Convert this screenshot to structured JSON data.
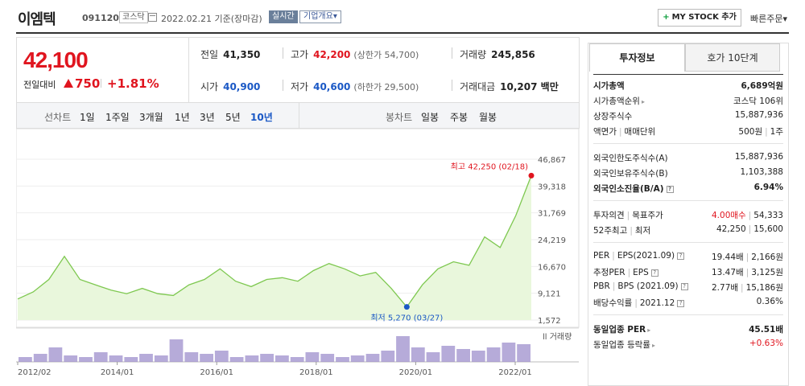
{
  "header": {
    "name": "이엠텍",
    "code": "091120",
    "market": "코스닥",
    "date": "2022.02.21 기준(장마감)",
    "realtime": "실시간",
    "overview": "기업개요",
    "overview_arrow": "▾",
    "mystock_plus": "+",
    "mystock": "MY STOCK 추가",
    "quick_order": "빠른주문",
    "quick_order_arrow": "▾"
  },
  "price": {
    "current": "42,100",
    "change_label": "전일대비",
    "change": "750",
    "change_pct": "+1.81%",
    "direction": "up"
  },
  "quote": {
    "prev_close_label": "전일",
    "prev_close": "41,350",
    "high_label": "고가",
    "high": "42,200",
    "upper_limit": "(상한가 54,700)",
    "volume_label": "거래량",
    "volume": "245,856",
    "open_label": "시가",
    "open": "40,900",
    "low_label": "저가",
    "low": "40,600",
    "lower_limit": "(하한가 29,500)",
    "value_label": "거래대금",
    "value": "10,207 백만"
  },
  "tabs": {
    "line_label": "선차트",
    "line_periods": [
      "1일",
      "1주일",
      "3개월",
      "1년",
      "3년",
      "5년",
      "10년"
    ],
    "active_period": "10년",
    "candle_label": "봉차트",
    "candle_periods": [
      "일봉",
      "주봉",
      "월봉"
    ]
  },
  "chart_data": {
    "type": "area",
    "title": "",
    "y_ticks": [
      "46,867",
      "39,318",
      "31,769",
      "24,219",
      "16,670",
      "9,121",
      "1,572"
    ],
    "ylim": [
      1572,
      46867
    ],
    "x_ticks": [
      "2012/02",
      "2014/01",
      "2016/01",
      "2018/01",
      "2020/01",
      "2022/01"
    ],
    "x": [
      "2012/02",
      "2012/06",
      "2012/10",
      "2013/02",
      "2013/06",
      "2013/10",
      "2014/01",
      "2014/06",
      "2014/10",
      "2015/02",
      "2015/06",
      "2015/10",
      "2016/01",
      "2016/06",
      "2016/10",
      "2017/02",
      "2017/06",
      "2017/10",
      "2018/01",
      "2018/06",
      "2018/10",
      "2019/02",
      "2019/06",
      "2019/10",
      "2020/01",
      "2020/03",
      "2020/06",
      "2020/10",
      "2021/02",
      "2021/06",
      "2021/10",
      "2021/12",
      "2022/01",
      "2022/02"
    ],
    "values": [
      7500,
      9500,
      13000,
      19500,
      13000,
      11500,
      10000,
      9000,
      10500,
      9000,
      8500,
      11500,
      13000,
      16000,
      12500,
      11000,
      13000,
      13500,
      12500,
      15500,
      17500,
      16000,
      14000,
      15000,
      10500,
      5270,
      11500,
      16000,
      18000,
      17000,
      25000,
      22000,
      31000,
      42250
    ],
    "high_label": "최고 42,250 (02/18)",
    "low_label": "최저 5,270 (03/27)",
    "volume_label": "거래량",
    "volume_values": [
      3,
      5,
      9,
      4,
      3,
      6,
      4,
      3,
      5,
      4,
      14,
      6,
      5,
      7,
      3,
      4,
      5,
      4,
      3,
      6,
      5,
      3,
      4,
      5,
      7,
      16,
      9,
      6,
      10,
      8,
      7,
      9,
      12,
      11
    ],
    "colors": {
      "line": "#7ec850",
      "fill": "#e9f7dc",
      "high": "#e0151f",
      "low": "#1a58c5",
      "volume": "#9d8fcc"
    }
  },
  "panel": {
    "tab_info": "투자정보",
    "tab_orderbook": "호가 10단계",
    "market_cap_label": "시가총액",
    "market_cap": "6,689억원",
    "cap_rank_label": "시가총액순위",
    "cap_rank": "코스닥 106위",
    "shares_label": "상장주식수",
    "shares": "15,887,936",
    "face_label": "액면가",
    "trade_unit_label": "매매단위",
    "face": "500원",
    "trade_unit": "1주",
    "foreign_limit_label": "외국인한도주식수(A)",
    "foreign_limit": "15,887,936",
    "foreign_hold_label": "외국인보유주식수(B)",
    "foreign_hold": "1,103,388",
    "foreign_rate_label": "외국인소진율(B/A)",
    "foreign_rate": "6.94%",
    "opinion_label": "투자의견",
    "target_label": "목표주가",
    "opinion": "4.00매수",
    "target": "54,333",
    "w52_high_label": "52주최고",
    "w52_low_label": "최저",
    "w52_high": "42,250",
    "w52_low": "15,600",
    "per_label": "PER",
    "eps_label": "EPS(2021.09)",
    "per": "19.44배",
    "eps": "2,166원",
    "est_per_label": "추정PER",
    "est_eps_label": "EPS",
    "est_per": "13.47배",
    "est_eps": "3,125원",
    "pbr_label": "PBR",
    "bps_label": "BPS (2021.09)",
    "pbr": "2.77배",
    "bps": "15,186원",
    "div_label": "배당수익률",
    "div_period": "2021.12",
    "div": "0.36%",
    "ind_per_label": "동일업종 PER",
    "ind_per": "45.51배",
    "ind_rate_label": "동일업종 등락률",
    "ind_rate": "+0.63%"
  }
}
